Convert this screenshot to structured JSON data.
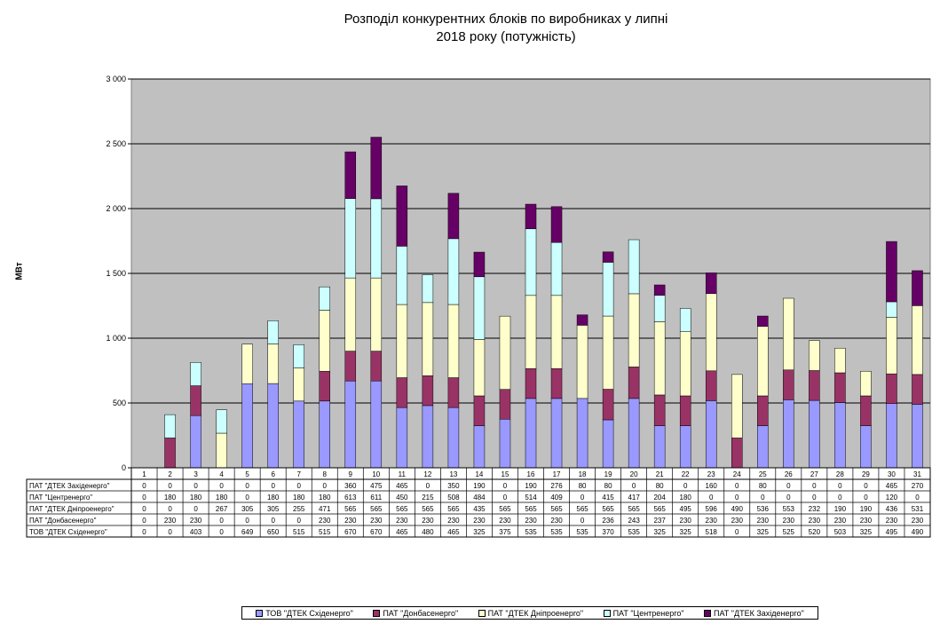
{
  "chart_data": {
    "type": "bar",
    "stacked": true,
    "title_lines": [
      "Розподіл конкурентних  блоків по виробниках  у липні",
      "2018 року (потужність)"
    ],
    "ylabel": "МВт",
    "ylim": [
      0,
      3000
    ],
    "yticks": [
      0,
      500,
      1000,
      1500,
      2000,
      2500,
      3000
    ],
    "ytick_labels": [
      "0",
      "500",
      "1 000",
      "1 500",
      "2 000",
      "2 500",
      "3 000"
    ],
    "grid": true,
    "plot_background": "#c0c0c0",
    "categories": [
      "1",
      "2",
      "3",
      "4",
      "5",
      "6",
      "7",
      "8",
      "9",
      "10",
      "11",
      "12",
      "13",
      "14",
      "15",
      "16",
      "17",
      "18",
      "19",
      "20",
      "21",
      "22",
      "23",
      "24",
      "25",
      "26",
      "27",
      "28",
      "29",
      "30",
      "31"
    ],
    "series": [
      {
        "name": "ТОВ \"ДТЕК Східенерго\"",
        "legend": "ТОВ \"ДТЕК Східенерго\"",
        "color": "#9999ff",
        "values": [
          0,
          0,
          403,
          0,
          649,
          650,
          515,
          515,
          670,
          670,
          465,
          480,
          465,
          325,
          375,
          535,
          535,
          535,
          370,
          535,
          325,
          325,
          518,
          0,
          325,
          525,
          520,
          503,
          325,
          495,
          490
        ]
      },
      {
        "name": "ПАТ \"Донбасенерго\"",
        "legend": "ПАТ \"Донбасенерго\"",
        "color": "#993366",
        "values": [
          0,
          230,
          230,
          0,
          0,
          0,
          0,
          230,
          230,
          230,
          230,
          230,
          230,
          230,
          230,
          230,
          230,
          0,
          236,
          243,
          237,
          230,
          230,
          230,
          230,
          230,
          230,
          230,
          230,
          230,
          230
        ]
      },
      {
        "name": "ПАТ \"ДТЕК Дніпроенерго\"",
        "legend": "ПАТ \"ДТЕК Дніпроенерго\"",
        "color": "#ffffcc",
        "values": [
          0,
          0,
          0,
          267,
          305,
          305,
          255,
          471,
          565,
          565,
          565,
          565,
          565,
          435,
          565,
          565,
          565,
          565,
          565,
          565,
          565,
          495,
          596,
          490,
          536,
          553,
          232,
          190,
          190,
          436,
          531
        ]
      },
      {
        "name": "ПАТ \"Центренерго\"",
        "legend": "ПАТ \"Центренерго\"",
        "color": "#ccffff",
        "values": [
          0,
          180,
          180,
          180,
          0,
          180,
          180,
          180,
          613,
          611,
          450,
          215,
          508,
          484,
          0,
          514,
          409,
          0,
          415,
          417,
          204,
          180,
          0,
          0,
          0,
          0,
          0,
          0,
          0,
          120,
          0
        ]
      },
      {
        "name": "ПАТ \"ДТЕК Західенерго\"",
        "legend": "ПАТ \"ДТЕК Західенерго\"",
        "color": "#660066",
        "values": [
          0,
          0,
          0,
          0,
          0,
          0,
          0,
          0,
          360,
          475,
          465,
          0,
          350,
          190,
          0,
          190,
          276,
          80,
          80,
          0,
          80,
          0,
          160,
          0,
          80,
          0,
          0,
          0,
          0,
          465,
          270
        ]
      }
    ],
    "table_row_order": [
      4,
      3,
      2,
      1,
      0
    ],
    "legend_position": "bottom"
  }
}
